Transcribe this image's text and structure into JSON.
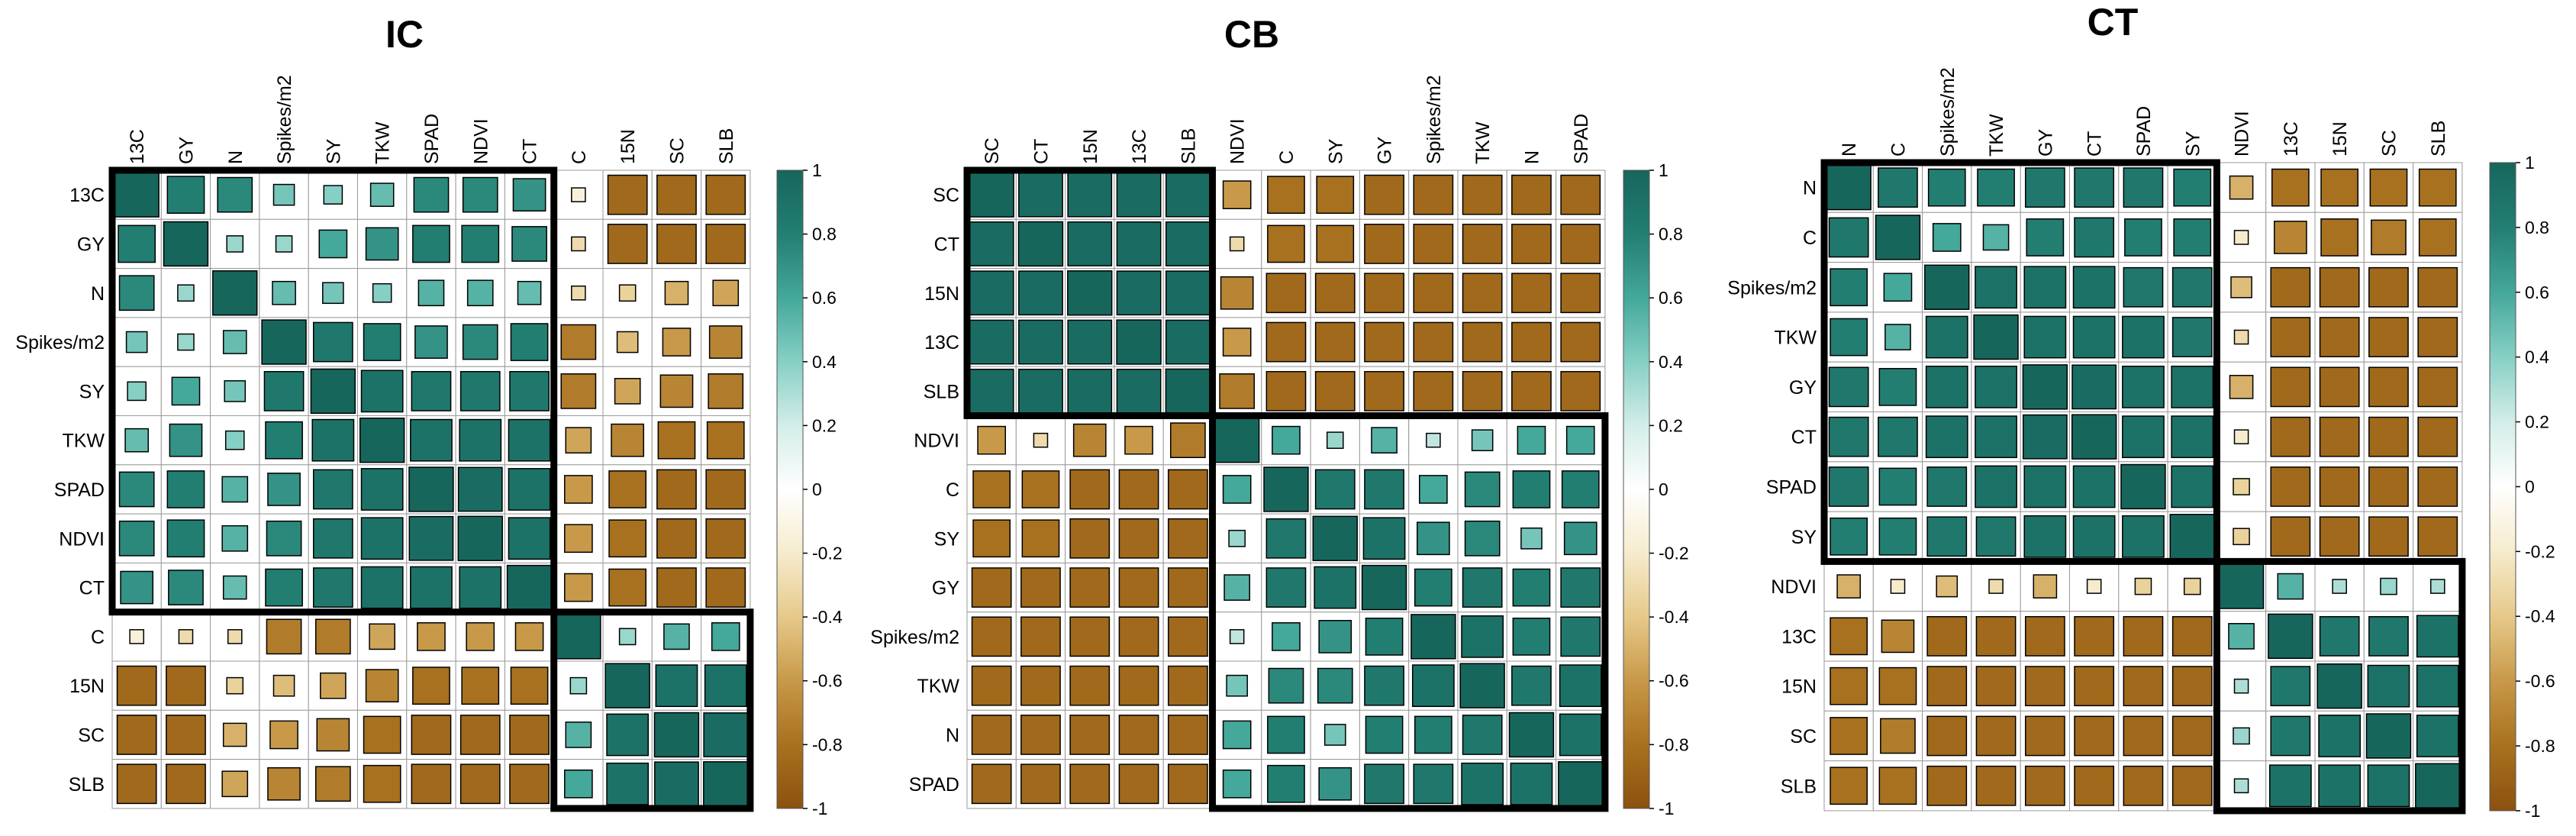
{
  "palette": {
    "neg": "#8c5110",
    "mid": "#ffffff",
    "pos": "#1c6d63",
    "colorbar_stops": [
      "#8c5110",
      "#a8711f",
      "#c79949",
      "#e6c98a",
      "#f6ebcd",
      "#ffffff",
      "#d3ede8",
      "#86cfc4",
      "#44a89a",
      "#237e72",
      "#17665c"
    ]
  },
  "chart_data": [
    {
      "type": "heatmap",
      "title": "IC",
      "labels": [
        "13C",
        "GY",
        "N",
        "Spikes/m2",
        "SY",
        "TKW",
        "SPAD",
        "NDVI",
        "CT",
        "C",
        "15N",
        "SC",
        "SLB"
      ],
      "clusters": [
        [
          0,
          9
        ],
        [
          9,
          13
        ]
      ],
      "colorbar_ticks": [
        "1",
        "0.8",
        "0.6",
        "0.4",
        "0.2",
        "0",
        "-0.2",
        "-0.4",
        "-0.6",
        "-0.8",
        "-1"
      ],
      "correlations": [
        [
          1,
          0.8,
          0.75,
          0.45,
          0.4,
          0.5,
          0.75,
          0.75,
          0.7,
          -0.15,
          -0.85,
          -0.85,
          -0.85
        ],
        [
          0.8,
          1,
          0.35,
          0.35,
          0.6,
          0.7,
          0.8,
          0.8,
          0.75,
          -0.3,
          -0.85,
          -0.85,
          -0.85
        ],
        [
          0.75,
          0.35,
          1,
          0.5,
          0.45,
          0.4,
          0.55,
          0.55,
          0.5,
          -0.3,
          -0.35,
          -0.5,
          -0.55
        ],
        [
          0.45,
          0.35,
          0.5,
          1,
          0.85,
          0.8,
          0.7,
          0.75,
          0.8,
          -0.75,
          -0.45,
          -0.6,
          -0.7
        ],
        [
          0.4,
          0.6,
          0.45,
          0.85,
          1,
          0.9,
          0.85,
          0.85,
          0.85,
          -0.75,
          -0.55,
          -0.7,
          -0.75
        ],
        [
          0.5,
          0.7,
          0.4,
          0.8,
          0.9,
          1,
          0.9,
          0.9,
          0.9,
          -0.55,
          -0.7,
          -0.8,
          -0.8
        ],
        [
          0.75,
          0.8,
          0.55,
          0.7,
          0.85,
          0.9,
          1,
          0.95,
          0.9,
          -0.6,
          -0.8,
          -0.85,
          -0.85
        ],
        [
          0.75,
          0.8,
          0.55,
          0.75,
          0.85,
          0.9,
          0.95,
          1,
          0.9,
          -0.6,
          -0.8,
          -0.85,
          -0.85
        ],
        [
          0.7,
          0.75,
          0.5,
          0.8,
          0.85,
          0.9,
          0.9,
          0.9,
          1,
          -0.6,
          -0.8,
          -0.85,
          -0.85
        ],
        [
          -0.15,
          -0.3,
          -0.3,
          -0.75,
          -0.75,
          -0.55,
          -0.6,
          -0.6,
          -0.6,
          1,
          0.35,
          0.55,
          0.6
        ],
        [
          -0.85,
          -0.85,
          -0.35,
          -0.45,
          -0.55,
          -0.7,
          -0.8,
          -0.8,
          -0.8,
          0.35,
          1,
          0.9,
          0.9
        ],
        [
          -0.85,
          -0.85,
          -0.5,
          -0.6,
          -0.7,
          -0.8,
          -0.85,
          -0.85,
          -0.85,
          0.55,
          0.9,
          1,
          0.95
        ],
        [
          -0.85,
          -0.85,
          -0.55,
          -0.7,
          -0.75,
          -0.8,
          -0.85,
          -0.85,
          -0.85,
          0.6,
          0.9,
          0.95,
          1
        ]
      ]
    },
    {
      "type": "heatmap",
      "title": "CB",
      "labels": [
        "SC",
        "CT",
        "15N",
        "13C",
        "SLB",
        "NDVI",
        "C",
        "SY",
        "GY",
        "Spikes/m2",
        "TKW",
        "N",
        "SPAD"
      ],
      "clusters": [
        [
          0,
          5
        ],
        [
          5,
          13
        ]
      ],
      "colorbar_ticks": [
        "1",
        "0.8",
        "0.6",
        "0.4",
        "0.2",
        "0",
        "-0.2",
        "-0.4",
        "-0.6",
        "-0.8",
        "-1"
      ],
      "correlations": [
        [
          1,
          0.95,
          0.95,
          0.95,
          0.95,
          -0.6,
          -0.8,
          -0.8,
          -0.85,
          -0.85,
          -0.85,
          -0.85,
          -0.85
        ],
        [
          0.95,
          1,
          0.95,
          0.95,
          0.95,
          -0.3,
          -0.8,
          -0.8,
          -0.85,
          -0.85,
          -0.85,
          -0.85,
          -0.85
        ],
        [
          0.95,
          0.95,
          1,
          0.95,
          0.95,
          -0.7,
          -0.85,
          -0.85,
          -0.85,
          -0.85,
          -0.85,
          -0.85,
          -0.85
        ],
        [
          0.95,
          0.95,
          0.95,
          1,
          0.95,
          -0.6,
          -0.85,
          -0.85,
          -0.85,
          -0.85,
          -0.85,
          -0.85,
          -0.85
        ],
        [
          0.95,
          0.95,
          0.95,
          0.95,
          1,
          -0.75,
          -0.85,
          -0.85,
          -0.85,
          -0.85,
          -0.85,
          -0.85,
          -0.85
        ],
        [
          -0.6,
          -0.3,
          -0.7,
          -0.6,
          -0.75,
          1,
          0.6,
          0.35,
          0.55,
          0.25,
          0.45,
          0.6,
          0.6
        ],
        [
          -0.8,
          -0.8,
          -0.85,
          -0.85,
          -0.85,
          0.6,
          1,
          0.85,
          0.85,
          0.6,
          0.75,
          0.8,
          0.8
        ],
        [
          -0.8,
          -0.8,
          -0.85,
          -0.85,
          -0.85,
          0.35,
          0.85,
          1,
          0.9,
          0.7,
          0.75,
          0.45,
          0.7
        ],
        [
          -0.85,
          -0.85,
          -0.85,
          -0.85,
          -0.85,
          0.55,
          0.85,
          0.9,
          1,
          0.8,
          0.85,
          0.8,
          0.85
        ],
        [
          -0.85,
          -0.85,
          -0.85,
          -0.85,
          -0.85,
          0.25,
          0.6,
          0.7,
          0.8,
          1,
          0.9,
          0.8,
          0.85
        ],
        [
          -0.85,
          -0.85,
          -0.85,
          -0.85,
          -0.85,
          0.45,
          0.75,
          0.75,
          0.85,
          0.9,
          1,
          0.85,
          0.9
        ],
        [
          -0.85,
          -0.85,
          -0.85,
          -0.85,
          -0.85,
          0.6,
          0.8,
          0.45,
          0.8,
          0.8,
          0.85,
          1,
          0.9
        ],
        [
          -0.85,
          -0.85,
          -0.85,
          -0.85,
          -0.85,
          0.6,
          0.8,
          0.7,
          0.85,
          0.85,
          0.9,
          0.9,
          1
        ]
      ]
    },
    {
      "type": "heatmap",
      "title": "CT",
      "labels": [
        "N",
        "C",
        "Spikes/m2",
        "TKW",
        "GY",
        "CT",
        "SPAD",
        "SY",
        "NDVI",
        "13C",
        "15N",
        "SC",
        "SLB"
      ],
      "clusters": [
        [
          0,
          8
        ],
        [
          8,
          13
        ]
      ],
      "colorbar_ticks": [
        "1",
        "0.8",
        "0.6",
        "0.4",
        "0.2",
        "0",
        "-0.2",
        "-0.4",
        "-0.6",
        "-0.8",
        "-1"
      ],
      "correlations": [
        [
          1,
          0.85,
          0.8,
          0.8,
          0.85,
          0.85,
          0.85,
          0.8,
          -0.5,
          -0.8,
          -0.8,
          -0.8,
          -0.8
        ],
        [
          0.85,
          1,
          0.6,
          0.55,
          0.8,
          0.85,
          0.8,
          0.8,
          -0.2,
          -0.7,
          -0.8,
          -0.75,
          -0.8
        ],
        [
          0.8,
          0.6,
          1,
          0.9,
          0.9,
          0.9,
          0.85,
          0.85,
          -0.45,
          -0.85,
          -0.85,
          -0.85,
          -0.85
        ],
        [
          0.8,
          0.55,
          0.9,
          1,
          0.9,
          0.9,
          0.9,
          0.85,
          -0.3,
          -0.85,
          -0.85,
          -0.85,
          -0.85
        ],
        [
          0.85,
          0.8,
          0.9,
          0.9,
          1,
          0.95,
          0.9,
          0.9,
          -0.5,
          -0.85,
          -0.85,
          -0.85,
          -0.85
        ],
        [
          0.85,
          0.85,
          0.9,
          0.9,
          0.95,
          1,
          0.9,
          0.9,
          -0.2,
          -0.85,
          -0.85,
          -0.85,
          -0.85
        ],
        [
          0.85,
          0.8,
          0.85,
          0.9,
          0.9,
          0.9,
          1,
          0.9,
          -0.35,
          -0.85,
          -0.85,
          -0.85,
          -0.85
        ],
        [
          0.8,
          0.8,
          0.85,
          0.85,
          0.9,
          0.9,
          0.9,
          1,
          -0.35,
          -0.85,
          -0.85,
          -0.85,
          -0.85
        ],
        [
          -0.5,
          -0.2,
          -0.45,
          -0.3,
          -0.5,
          -0.2,
          -0.35,
          -0.35,
          1,
          0.55,
          0.3,
          0.35,
          0.3
        ],
        [
          -0.8,
          -0.7,
          -0.85,
          -0.85,
          -0.85,
          -0.85,
          -0.85,
          -0.85,
          0.55,
          1,
          0.85,
          0.85,
          0.9
        ],
        [
          -0.8,
          -0.8,
          -0.85,
          -0.85,
          -0.85,
          -0.85,
          -0.85,
          -0.85,
          0.3,
          0.85,
          1,
          0.9,
          0.9
        ],
        [
          -0.8,
          -0.75,
          -0.85,
          -0.85,
          -0.85,
          -0.85,
          -0.85,
          -0.85,
          0.35,
          0.85,
          0.9,
          1,
          0.9
        ],
        [
          -0.8,
          -0.8,
          -0.85,
          -0.85,
          -0.85,
          -0.85,
          -0.85,
          -0.85,
          0.3,
          0.9,
          0.9,
          0.9,
          1
        ]
      ]
    }
  ]
}
